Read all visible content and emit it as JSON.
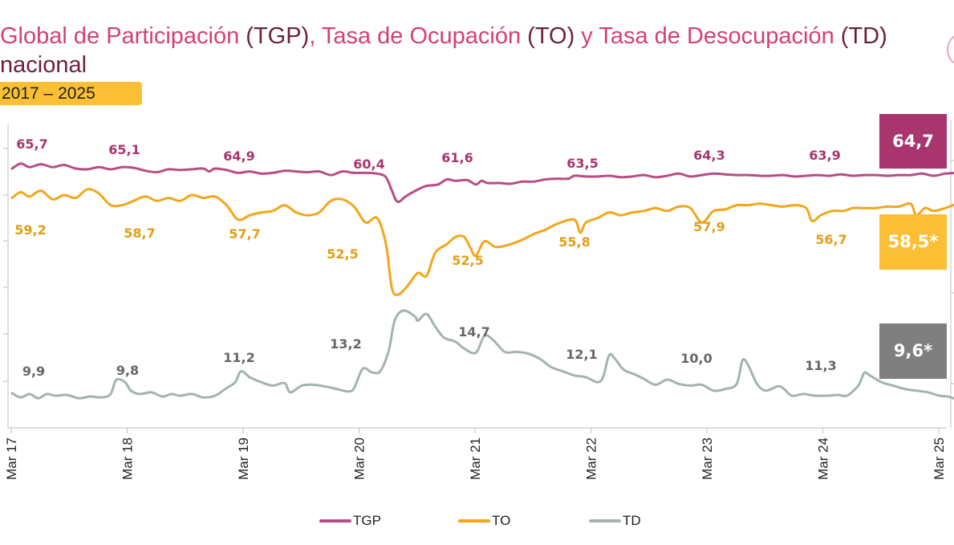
{
  "header": {
    "title_part1": "Global de Participación",
    "title_part2": " (TGP)",
    "title_part3": ", Tasa de Ocupación",
    "title_part4": " (TO)",
    "title_part5": " y Tasa de Desocupación",
    "title_part6": " (TD)",
    "subtitle": "nacional",
    "period": "2017 – 2025"
  },
  "colors": {
    "tgp": "#b84d85",
    "to": "#f2a71b",
    "td": "#a5b2b2",
    "callout_tgp": "#a8356d",
    "callout_to": "#fbbf36",
    "callout_td": "#7f7f7f",
    "label_tgp": "#a8356d",
    "label_to": "#e39e17",
    "label_td": "#666666"
  },
  "chart_data": {
    "type": "line",
    "x_ticks": [
      "Mar 17",
      "Mar 18",
      "Mar 19",
      "Mar 20",
      "Mar 21",
      "Mar 22",
      "Mar 23",
      "Mar 24",
      "Mar 25"
    ],
    "series": [
      {
        "name": "TGP",
        "values": [
          [
            0,
            65.0
          ],
          [
            0.3,
            65.7
          ],
          [
            0.6,
            65.2
          ],
          [
            1.0,
            65.6
          ],
          [
            1.4,
            65.2
          ],
          [
            1.8,
            65.5
          ],
          [
            2.2,
            65.0
          ],
          [
            2.6,
            64.9
          ],
          [
            3.0,
            65.2
          ],
          [
            3.4,
            64.9
          ],
          [
            3.8,
            65.2
          ],
          [
            4.2,
            65.1
          ],
          [
            4.6,
            64.7
          ],
          [
            5.0,
            64.5
          ],
          [
            5.4,
            64.9
          ],
          [
            5.8,
            64.8
          ],
          [
            6.2,
            64.9
          ],
          [
            6.6,
            65.0
          ],
          [
            6.8,
            64.6
          ],
          [
            7.0,
            65.0
          ],
          [
            7.4,
            64.8
          ],
          [
            7.8,
            64.4
          ],
          [
            8.2,
            64.6
          ],
          [
            8.6,
            64.3
          ],
          [
            9.0,
            64.4
          ],
          [
            9.4,
            64.7
          ],
          [
            9.8,
            64.6
          ],
          [
            10.2,
            64.5
          ],
          [
            10.6,
            64.6
          ],
          [
            11.0,
            64.1
          ],
          [
            11.4,
            64.6
          ],
          [
            11.8,
            64.4
          ],
          [
            12.2,
            64.4
          ],
          [
            12.6,
            64.3
          ],
          [
            12.9,
            63.8
          ],
          [
            13.1,
            62.0
          ],
          [
            13.3,
            60.4
          ],
          [
            13.6,
            61.2
          ],
          [
            14.0,
            62.1
          ],
          [
            14.3,
            62.6
          ],
          [
            14.7,
            62.8
          ],
          [
            15.0,
            63.5
          ],
          [
            15.3,
            63.3
          ],
          [
            15.7,
            63.4
          ],
          [
            16.0,
            62.8
          ],
          [
            16.2,
            63.3
          ],
          [
            16.4,
            63.0
          ],
          [
            16.8,
            63.0
          ],
          [
            17.2,
            62.9
          ],
          [
            17.6,
            63.2
          ],
          [
            18.0,
            63.2
          ],
          [
            18.4,
            63.5
          ],
          [
            18.8,
            63.6
          ],
          [
            19.2,
            63.6
          ],
          [
            19.4,
            64.0
          ],
          [
            19.8,
            63.9
          ],
          [
            20.2,
            63.9
          ],
          [
            20.6,
            64.0
          ],
          [
            21.0,
            63.8
          ],
          [
            21.4,
            63.9
          ],
          [
            21.8,
            64.1
          ],
          [
            22.2,
            63.8
          ],
          [
            22.6,
            64.0
          ],
          [
            23.0,
            64.3
          ],
          [
            23.4,
            63.9
          ],
          [
            23.8,
            64.1
          ],
          [
            24.2,
            64.3
          ],
          [
            24.6,
            64.2
          ],
          [
            25.0,
            64.1
          ],
          [
            25.4,
            64.1
          ],
          [
            25.8,
            64.0
          ],
          [
            26.2,
            64.0
          ],
          [
            26.6,
            64.1
          ],
          [
            27.0,
            63.9
          ],
          [
            27.4,
            64.0
          ],
          [
            27.8,
            64.1
          ],
          [
            28.2,
            64.0
          ],
          [
            28.6,
            64.2
          ],
          [
            29.0,
            64.0
          ],
          [
            29.4,
            64.1
          ],
          [
            29.8,
            64.1
          ],
          [
            30.2,
            64.0
          ],
          [
            30.6,
            64.1
          ],
          [
            31.0,
            64.1
          ],
          [
            31.4,
            64.3
          ],
          [
            31.8,
            64.0
          ],
          [
            32.2,
            64.3
          ],
          [
            32.6,
            64.4
          ]
        ]
      },
      {
        "name": "TO",
        "values": [
          [
            0,
            59.2
          ],
          [
            0.3,
            59.6
          ],
          [
            0.6,
            59.3
          ],
          [
            1.0,
            59.7
          ],
          [
            1.4,
            59.1
          ],
          [
            1.8,
            59.4
          ],
          [
            2.2,
            59.2
          ],
          [
            2.6,
            59.8
          ],
          [
            3.0,
            59.5
          ],
          [
            3.4,
            58.7
          ],
          [
            3.8,
            58.7
          ],
          [
            4.2,
            59.0
          ],
          [
            4.6,
            59.3
          ],
          [
            5.0,
            59.0
          ],
          [
            5.4,
            59.2
          ],
          [
            5.8,
            59.0
          ],
          [
            6.2,
            59.4
          ],
          [
            6.6,
            59.2
          ],
          [
            7.0,
            59.3
          ],
          [
            7.4,
            58.7
          ],
          [
            7.8,
            57.7
          ],
          [
            8.2,
            58.0
          ],
          [
            8.6,
            58.2
          ],
          [
            9.0,
            58.3
          ],
          [
            9.4,
            58.7
          ],
          [
            9.8,
            58.2
          ],
          [
            10.2,
            58.0
          ],
          [
            10.6,
            58.2
          ],
          [
            11.0,
            59.0
          ],
          [
            11.4,
            59.1
          ],
          [
            11.8,
            58.6
          ],
          [
            12.2,
            57.5
          ],
          [
            12.6,
            57.8
          ],
          [
            12.9,
            56.0
          ],
          [
            13.1,
            53.0
          ],
          [
            13.3,
            52.5
          ],
          [
            13.6,
            53.0
          ],
          [
            14.0,
            54.0
          ],
          [
            14.3,
            53.8
          ],
          [
            14.6,
            55.4
          ],
          [
            15.0,
            56.0
          ],
          [
            15.3,
            56.5
          ],
          [
            15.6,
            56.5
          ],
          [
            15.8,
            55.8
          ],
          [
            16.0,
            55.2
          ],
          [
            16.3,
            56.2
          ],
          [
            16.7,
            55.8
          ],
          [
            17.2,
            56.0
          ],
          [
            17.6,
            56.3
          ],
          [
            18.0,
            56.7
          ],
          [
            18.4,
            57.0
          ],
          [
            18.8,
            57.4
          ],
          [
            19.4,
            57.7
          ],
          [
            19.6,
            56.8
          ],
          [
            19.8,
            57.5
          ],
          [
            20.2,
            57.8
          ],
          [
            20.6,
            58.2
          ],
          [
            21.0,
            58.0
          ],
          [
            21.4,
            58.2
          ],
          [
            21.8,
            58.3
          ],
          [
            22.2,
            58.5
          ],
          [
            22.6,
            58.3
          ],
          [
            23.0,
            58.6
          ],
          [
            23.4,
            58.5
          ],
          [
            23.8,
            57.5
          ],
          [
            24.2,
            58.3
          ],
          [
            24.6,
            58.4
          ],
          [
            25.0,
            58.7
          ],
          [
            25.4,
            58.7
          ],
          [
            25.8,
            58.8
          ],
          [
            26.2,
            58.7
          ],
          [
            26.6,
            58.6
          ],
          [
            27.0,
            58.7
          ],
          [
            27.4,
            58.5
          ],
          [
            27.6,
            57.6
          ],
          [
            27.9,
            58.0
          ],
          [
            28.3,
            58.3
          ],
          [
            28.7,
            58.3
          ],
          [
            29.0,
            58.5
          ],
          [
            29.4,
            58.5
          ],
          [
            29.8,
            58.5
          ],
          [
            30.2,
            58.6
          ],
          [
            30.6,
            58.6
          ],
          [
            31.0,
            58.8
          ],
          [
            31.2,
            58.0
          ],
          [
            31.5,
            58.5
          ],
          [
            31.8,
            58.3
          ],
          [
            32.2,
            58.5
          ],
          [
            32.6,
            58.8
          ]
        ]
      },
      {
        "name": "TD",
        "values": [
          [
            0,
            9.9
          ],
          [
            0.3,
            9.4
          ],
          [
            0.6,
            9.8
          ],
          [
            0.9,
            9.3
          ],
          [
            1.2,
            9.8
          ],
          [
            1.5,
            9.6
          ],
          [
            1.9,
            9.7
          ],
          [
            2.3,
            9.3
          ],
          [
            2.7,
            9.5
          ],
          [
            3.1,
            9.4
          ],
          [
            3.4,
            9.8
          ],
          [
            3.6,
            11.5
          ],
          [
            3.9,
            11.2
          ],
          [
            4.1,
            10.2
          ],
          [
            4.4,
            9.8
          ],
          [
            4.8,
            10.0
          ],
          [
            5.2,
            9.5
          ],
          [
            5.5,
            9.8
          ],
          [
            5.8,
            9.6
          ],
          [
            6.2,
            9.8
          ],
          [
            6.6,
            9.4
          ],
          [
            7.0,
            9.6
          ],
          [
            7.4,
            10.5
          ],
          [
            7.7,
            11.2
          ],
          [
            7.9,
            12.5
          ],
          [
            8.2,
            11.8
          ],
          [
            8.6,
            11.2
          ],
          [
            9.0,
            10.8
          ],
          [
            9.4,
            11.1
          ],
          [
            9.6,
            10.0
          ],
          [
            10.0,
            10.8
          ],
          [
            10.4,
            10.9
          ],
          [
            10.8,
            10.7
          ],
          [
            11.2,
            10.4
          ],
          [
            11.6,
            10.1
          ],
          [
            11.8,
            10.5
          ],
          [
            12.1,
            12.8
          ],
          [
            12.4,
            12.4
          ],
          [
            12.7,
            12.5
          ],
          [
            13.0,
            15.0
          ],
          [
            13.2,
            18.5
          ],
          [
            13.5,
            19.7
          ],
          [
            13.9,
            19.0
          ],
          [
            14.0,
            18.5
          ],
          [
            14.3,
            19.3
          ],
          [
            14.6,
            17.8
          ],
          [
            14.9,
            16.5
          ],
          [
            15.3,
            16.0
          ],
          [
            15.6,
            15.2
          ],
          [
            16.0,
            14.7
          ],
          [
            16.3,
            16.7
          ],
          [
            16.6,
            16.2
          ],
          [
            17.0,
            14.8
          ],
          [
            17.4,
            14.8
          ],
          [
            17.8,
            14.6
          ],
          [
            18.2,
            14.0
          ],
          [
            18.6,
            13.0
          ],
          [
            19.0,
            12.5
          ],
          [
            19.4,
            12.0
          ],
          [
            19.8,
            11.8
          ],
          [
            20.2,
            11.2
          ],
          [
            20.4,
            11.9
          ],
          [
            20.6,
            14.4
          ],
          [
            20.8,
            14.0
          ],
          [
            21.1,
            12.7
          ],
          [
            21.5,
            12.1
          ],
          [
            21.8,
            11.6
          ],
          [
            22.2,
            10.9
          ],
          [
            22.6,
            11.5
          ],
          [
            23.0,
            11.0
          ],
          [
            23.4,
            10.8
          ],
          [
            23.8,
            10.9
          ],
          [
            24.2,
            10.2
          ],
          [
            24.6,
            10.4
          ],
          [
            25.0,
            11.0
          ],
          [
            25.2,
            13.8
          ],
          [
            25.4,
            13.2
          ],
          [
            25.7,
            11.0
          ],
          [
            26.0,
            10.2
          ],
          [
            26.4,
            10.7
          ],
          [
            26.6,
            10.5
          ],
          [
            26.9,
            9.6
          ],
          [
            27.3,
            9.8
          ],
          [
            27.7,
            9.6
          ],
          [
            28.1,
            9.6
          ],
          [
            28.5,
            9.7
          ],
          [
            28.8,
            9.6
          ],
          [
            29.2,
            10.8
          ],
          [
            29.4,
            12.3
          ],
          [
            29.6,
            12.0
          ],
          [
            30.0,
            11.2
          ],
          [
            30.4,
            10.8
          ],
          [
            30.8,
            10.4
          ],
          [
            31.2,
            10.2
          ],
          [
            31.6,
            10.0
          ],
          [
            32.0,
            9.6
          ],
          [
            32.3,
            9.5
          ],
          [
            32.6,
            9.2
          ],
          [
            32.9,
            9.4
          ],
          [
            33.2,
            10.8
          ],
          [
            33.5,
            10.4
          ],
          [
            33.8,
            9.6
          ],
          [
            34.1,
            9.8
          ]
        ]
      }
    ],
    "annotations": [
      {
        "series": "TGP",
        "x": 0.3,
        "text": "65,7"
      },
      {
        "series": "TGP",
        "x": 4.2,
        "text": "65,1"
      },
      {
        "series": "TGP",
        "x": 8.2,
        "text": "64,9"
      },
      {
        "series": "TGP",
        "x": 13.0,
        "text": "60,4"
      },
      {
        "series": "TGP",
        "x": 16.2,
        "text": "61,6"
      },
      {
        "series": "TGP",
        "x": 20.4,
        "text": "63,5"
      },
      {
        "series": "TGP",
        "x": 24.6,
        "text": "64,3"
      },
      {
        "series": "TGP",
        "x": 28.6,
        "text": "63,9"
      },
      {
        "series": "TO",
        "x": 0.3,
        "text": "59,2"
      },
      {
        "series": "TO",
        "x": 4.2,
        "text": "58,7"
      },
      {
        "series": "TO",
        "x": 8.2,
        "text": "57,7"
      },
      {
        "series": "TO",
        "x": 11.9,
        "text": "52,5"
      },
      {
        "series": "TO",
        "x": 16.5,
        "text": "52,5"
      },
      {
        "series": "TO",
        "x": 20.4,
        "text": "55,8"
      },
      {
        "series": "TO",
        "x": 24.6,
        "text": "57,9"
      },
      {
        "series": "TO",
        "x": 28.6,
        "text": "56,7"
      },
      {
        "series": "TD",
        "x": 0.3,
        "text": "9,9"
      },
      {
        "series": "TD",
        "x": 4.2,
        "text": "9,8"
      },
      {
        "series": "TD",
        "x": 8.2,
        "text": "11,2"
      },
      {
        "series": "TD",
        "x": 12.2,
        "text": "13,2"
      },
      {
        "series": "TD",
        "x": 16.5,
        "text": "14,7"
      },
      {
        "series": "TD",
        "x": 20.4,
        "text": "12,1"
      },
      {
        "series": "TD",
        "x": 24.6,
        "text": "10,0"
      },
      {
        "series": "TD",
        "x": 28.6,
        "text": "11,3"
      }
    ],
    "callouts": [
      {
        "series": "TGP",
        "text": "64,7"
      },
      {
        "series": "TO",
        "text": "58,5*"
      },
      {
        "series": "TD",
        "text": "9,6*"
      }
    ],
    "legend": [
      "TGP",
      "TO",
      "TD"
    ],
    "legend_position": "bottom"
  }
}
